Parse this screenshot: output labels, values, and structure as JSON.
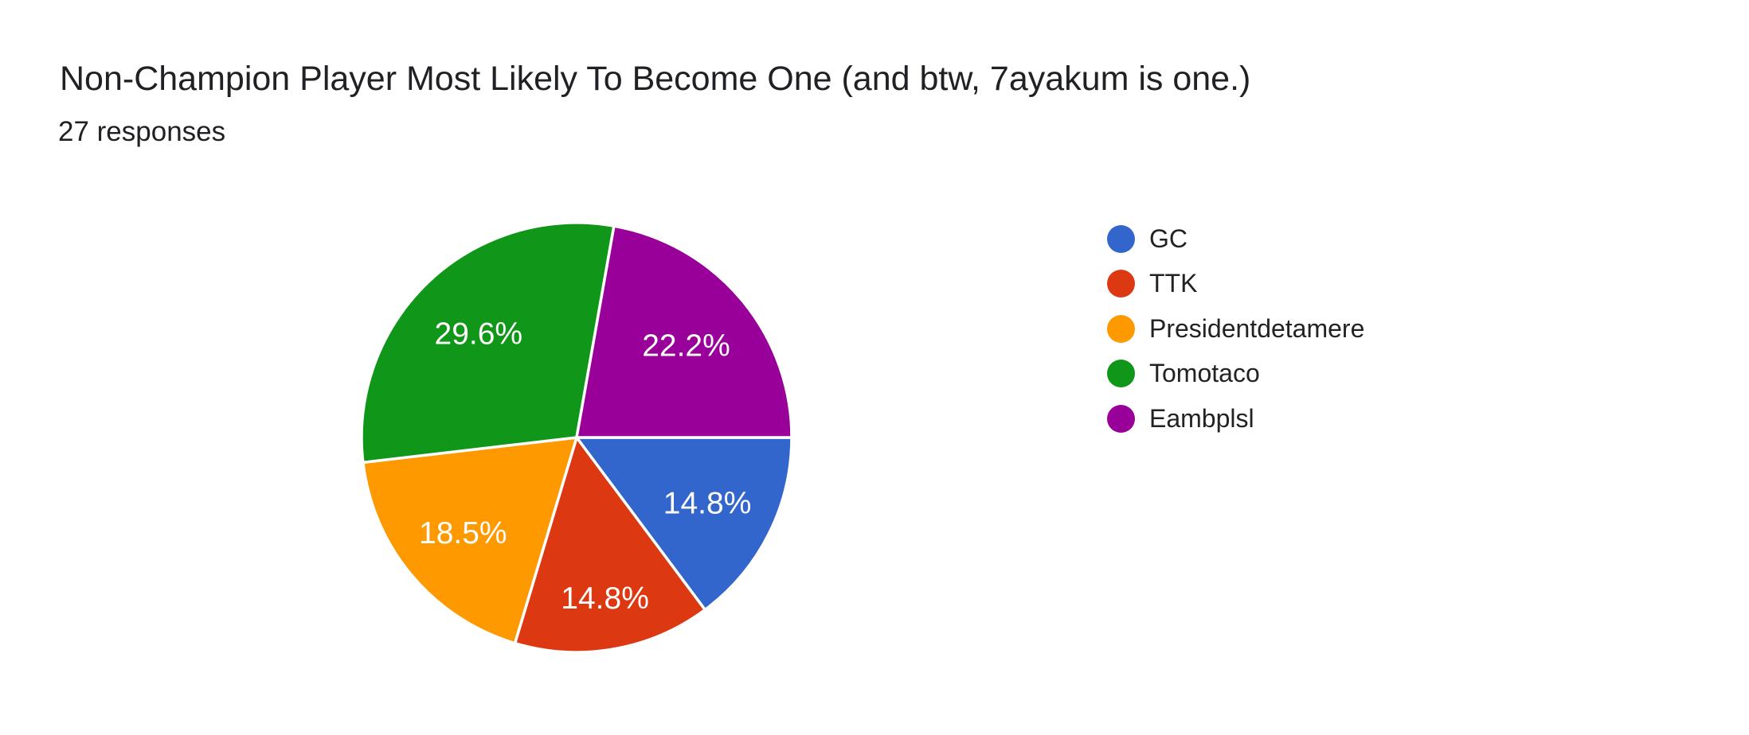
{
  "header": {
    "title": "Non-Champion Player Most Likely To Become One (and btw, 7ayakum is one.)",
    "responses_count": "27 responses"
  },
  "chart_data": {
    "type": "pie",
    "title": "Non-Champion Player Most Likely To Become One (and btw, 7ayakum is one.)",
    "subtitle": "27 responses",
    "total_responses": 27,
    "categories": [
      "GC",
      "TTK",
      "Presidentdetamere",
      "Tomotaco",
      "Eambplsl"
    ],
    "values": [
      14.8,
      14.8,
      18.5,
      29.6,
      22.2
    ],
    "value_labels": [
      "14.8%",
      "14.8%",
      "18.5%",
      "29.6%",
      "22.2%"
    ],
    "colors": [
      "#3366CC",
      "#DC3912",
      "#FF9900",
      "#109618",
      "#990099"
    ],
    "slice_label_color": "#FFFFFF",
    "legend_position": "right",
    "start_angle_deg": 90,
    "direction": "clockwise"
  }
}
